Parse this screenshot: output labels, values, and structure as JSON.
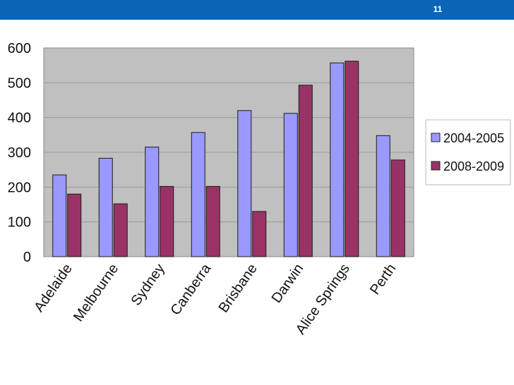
{
  "header": {
    "slide_number": "11",
    "bar_color": "#0b64b6"
  },
  "chart_data": {
    "type": "bar",
    "categories": [
      "Adelaide",
      "Melbourne",
      "Sydney",
      "Canberra",
      "Brisbane",
      "Darwin",
      "Alice Springs",
      "Perth"
    ],
    "series": [
      {
        "name": "2004-2005",
        "values": [
          235,
          283,
          315,
          357,
          420,
          412,
          557,
          348
        ],
        "color": "#9999ff"
      },
      {
        "name": "2008-2009",
        "values": [
          180,
          152,
          202,
          202,
          130,
          493,
          562,
          278
        ],
        "color": "#993366"
      }
    ],
    "title": "",
    "xlabel": "",
    "ylabel": "",
    "ylim": [
      0,
      600
    ],
    "yticks": [
      "0",
      "100",
      "200",
      "300",
      "400",
      "500",
      "600"
    ],
    "grid": true,
    "plot_background": "#c0c0c0",
    "legend_position": "right"
  }
}
